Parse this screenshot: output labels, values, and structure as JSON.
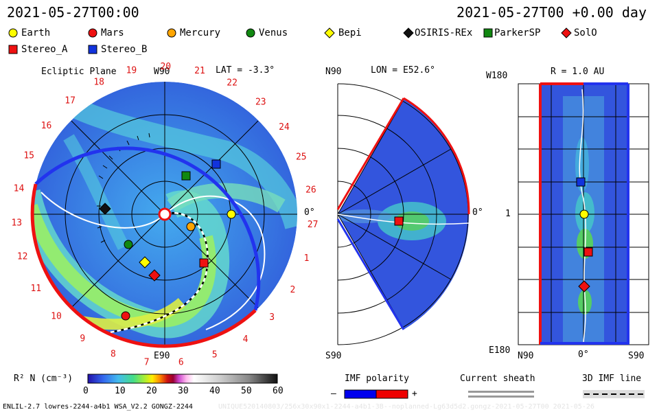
{
  "header": {
    "left_time": "2021-05-27T00:00",
    "right_time": "2021-05-27T00 +0.00 day"
  },
  "legend": [
    {
      "label": "Earth",
      "shape": "circle",
      "color": "#ffff00"
    },
    {
      "label": "Mars",
      "shape": "circle",
      "color": "#ee1111"
    },
    {
      "label": "Mercury",
      "shape": "circle",
      "color": "#ffa500"
    },
    {
      "label": "Venus",
      "shape": "circle",
      "color": "#118811"
    },
    {
      "label": "Bepi",
      "shape": "diamond",
      "color": "#ffff00"
    },
    {
      "label": "OSIRIS-REx",
      "shape": "diamond",
      "color": "#111111"
    },
    {
      "label": "ParkerSP",
      "shape": "square",
      "color": "#118811"
    },
    {
      "label": "SolO",
      "shape": "diamond",
      "color": "#ee1111"
    },
    {
      "label": "Stereo_A",
      "shape": "square",
      "color": "#ee1111"
    },
    {
      "label": "Stereo_B",
      "shape": "square",
      "color": "#1133dd"
    }
  ],
  "panels": {
    "ecliptic": {
      "title": "Ecliptic Plane",
      "top_label": "W90",
      "lat_label": "LAT = -3.3°",
      "bottom_label": "E90",
      "right_label": "0°",
      "hour_labels": [
        "19",
        "20",
        "21",
        "22",
        "23",
        "24",
        "25",
        "26",
        "27",
        "1",
        "2",
        "3",
        "4",
        "5",
        "6",
        "7",
        "8",
        "9",
        "10",
        "11",
        "12",
        "13",
        "14",
        "15",
        "16",
        "17",
        "18"
      ]
    },
    "meridional": {
      "lon_label": "LON = E52.6°",
      "top_label": "N90",
      "bottom_label": "S90",
      "right_label": "0°"
    },
    "radial": {
      "title": "R = 1.0 AU",
      "top_label": "W180",
      "left_mid_label": "1",
      "bottom_left_label": "E180",
      "bottom_labels": [
        "N90",
        "0°",
        "S90"
      ]
    }
  },
  "colorbar": {
    "label": "R² N (cm⁻³)",
    "ticks": [
      "0",
      "10",
      "20",
      "30",
      "40",
      "50",
      "60"
    ]
  },
  "keys": {
    "imf_polarity": {
      "title": "IMF polarity",
      "minus": "–",
      "plus": "+"
    },
    "current_sheath": {
      "title": "Current sheath"
    },
    "imf_line": {
      "title": "3D IMF line"
    }
  },
  "footer": {
    "left": "ENLIL-2.7 lowres-2244-a4b1 WSA_V2.2 GONGZ-2244",
    "right": "UNIQUE520140803/256x30x90x1-2244-a4b1-3B--noplanned-Lg63d5d2.gongz-2021-05-27T00    2021-05-26"
  }
}
